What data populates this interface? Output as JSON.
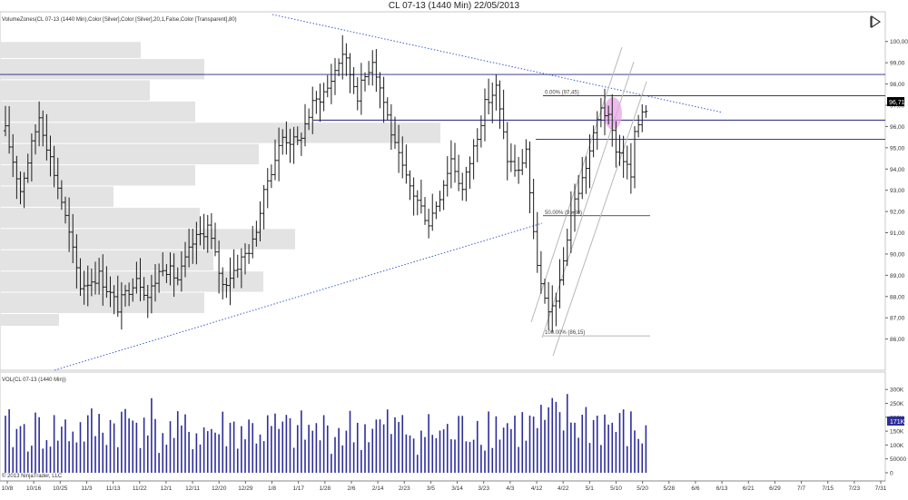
{
  "window_title": "CL 07-13 (1440 Min)  22/05/2013",
  "price_panel_label": "VolumeZones(CL 07-13 (1440 Min),Color [Silver],Color [Silver],20,1,False,Color [Transparent],80)",
  "volume_panel_label": "VOL(CL 07-13 (1440 Min))",
  "copyright": "© 2013 NinjaTrader, LLC",
  "colors": {
    "bar": "#1c1c1c",
    "volume_bar": "#2d2d9a",
    "zone": "#e3e3e3",
    "trendline": "#3a5fcd",
    "channel": "#b8b8b8",
    "fib": "#222222",
    "highlight": "#e6a0e6",
    "last_price_bg": "#000000",
    "last_volume_bg": "#2d2d9a"
  },
  "icons": {
    "collapse": "collapse-triangle-icon"
  },
  "chart_data": [
    {
      "type": "ohlc",
      "title": "CL 07-13 (1440 Min)",
      "ylim": [
        85.3,
        100.8
      ],
      "y_ticks": [
        "100,00",
        "99,00",
        "98,00",
        "97,00",
        "96,00",
        "95,00",
        "94,00",
        "93,00",
        "92,00",
        "91,00",
        "90,00",
        "89,00",
        "88,00",
        "87,00",
        "86,00"
      ],
      "x_ticks": [
        "10/8",
        "10/16",
        "10/25",
        "11/3",
        "11/13",
        "11/22",
        "12/1",
        "12/11",
        "12/20",
        "12/29",
        "1/8",
        "1/17",
        "1/28",
        "2/6",
        "2/14",
        "2/23",
        "3/5",
        "3/14",
        "3/23",
        "4/3",
        "4/12",
        "4/22",
        "5/1",
        "5/10",
        "5/20",
        "5/28",
        "6/6",
        "6/13",
        "6/21",
        "6/29",
        "7/7",
        "7/15",
        "7/23",
        "7/31"
      ],
      "last_price": "96,71",
      "close_path": [
        [
          0,
          95.8
        ],
        [
          4,
          93.0
        ],
        [
          9,
          96.5
        ],
        [
          15,
          92.5
        ],
        [
          20,
          88.5
        ],
        [
          25,
          89.0
        ],
        [
          30,
          87.5
        ],
        [
          35,
          89.0
        ],
        [
          38,
          88.0
        ],
        [
          42,
          89.5
        ],
        [
          46,
          88.8
        ],
        [
          50,
          90.5
        ],
        [
          54,
          91.3
        ],
        [
          58,
          88.5
        ],
        [
          62,
          89.5
        ],
        [
          66,
          90.5
        ],
        [
          70,
          93.5
        ],
        [
          74,
          95.5
        ],
        [
          78,
          95.2
        ],
        [
          82,
          97.0
        ],
        [
          86,
          97.8
        ],
        [
          90,
          99.5
        ],
        [
          94,
          97.5
        ],
        [
          98,
          99.2
        ],
        [
          102,
          96.5
        ],
        [
          104,
          95.0
        ],
        [
          107,
          93.5
        ],
        [
          110,
          92.5
        ],
        [
          113,
          91.5
        ],
        [
          116,
          92.8
        ],
        [
          119,
          94.5
        ],
        [
          122,
          93.0
        ],
        [
          125,
          95.0
        ],
        [
          128,
          97.0
        ],
        [
          131,
          97.8
        ],
        [
          134,
          94.5
        ],
        [
          137,
          93.8
        ],
        [
          139,
          95.0
        ],
        [
          141,
          90.8
        ],
        [
          143,
          88.5
        ],
        [
          145,
          87.0
        ],
        [
          148,
          88.5
        ],
        [
          151,
          92.0
        ],
        [
          154,
          93.5
        ],
        [
          157,
          95.5
        ],
        [
          159,
          97.0
        ],
        [
          161,
          96.3
        ],
        [
          163,
          95.0
        ],
        [
          165,
          94.5
        ],
        [
          167,
          93.6
        ],
        [
          168,
          95.5
        ],
        [
          170,
          96.8
        ],
        [
          171,
          96.71
        ]
      ],
      "price_lines": [
        {
          "price": 98.45
        },
        {
          "price": 97.45,
          "label": "0.00% (97,45)"
        },
        {
          "price": 96.3
        },
        {
          "price": 95.4
        },
        {
          "price": 91.8,
          "label": "50.00% (91,80)"
        },
        {
          "price": 86.15,
          "label": "100.00% (86,15)"
        }
      ],
      "volume_zones": [
        {
          "price_low": 99.2,
          "price_high": 100.0,
          "volume": 0.31
        },
        {
          "price_low": 98.2,
          "price_high": 99.2,
          "volume": 0.45
        },
        {
          "price_low": 97.2,
          "price_high": 98.2,
          "volume": 0.33
        },
        {
          "price_low": 96.2,
          "price_high": 97.2,
          "volume": 0.43
        },
        {
          "price_low": 95.2,
          "price_high": 96.2,
          "volume": 0.97
        },
        {
          "price_low": 94.2,
          "price_high": 95.2,
          "volume": 0.57
        },
        {
          "price_low": 93.2,
          "price_high": 94.2,
          "volume": 0.43
        },
        {
          "price_low": 92.2,
          "price_high": 93.2,
          "volume": 0.25
        },
        {
          "price_low": 91.2,
          "price_high": 92.2,
          "volume": 0.44
        },
        {
          "price_low": 90.2,
          "price_high": 91.2,
          "volume": 0.65
        },
        {
          "price_low": 89.2,
          "price_high": 90.2,
          "volume": 0.47
        },
        {
          "price_low": 88.2,
          "price_high": 89.2,
          "volume": 0.58
        },
        {
          "price_low": 87.2,
          "price_high": 88.2,
          "volume": 0.45
        },
        {
          "price_low": 86.6,
          "price_high": 87.2,
          "volume": 0.13
        }
      ]
    },
    {
      "type": "bar",
      "title": "VOL(CL 07-13 (1440 Min))",
      "ylim": [
        0,
        330000
      ],
      "y_ticks": [
        "300K",
        "250K",
        "200K",
        "150K",
        "100K",
        "50000",
        "0"
      ],
      "last_value": "171K",
      "volume_path": [
        [
          0,
          185000
        ],
        [
          20,
          190000
        ],
        [
          36,
          235000
        ],
        [
          38,
          300000
        ],
        [
          40,
          170000
        ],
        [
          60,
          195000
        ],
        [
          80,
          180000
        ],
        [
          100,
          200000
        ],
        [
          120,
          170000
        ],
        [
          125,
          225000
        ],
        [
          140,
          200000
        ],
        [
          150,
          240000
        ],
        [
          160,
          220000
        ],
        [
          171,
          171000
        ]
      ]
    }
  ]
}
